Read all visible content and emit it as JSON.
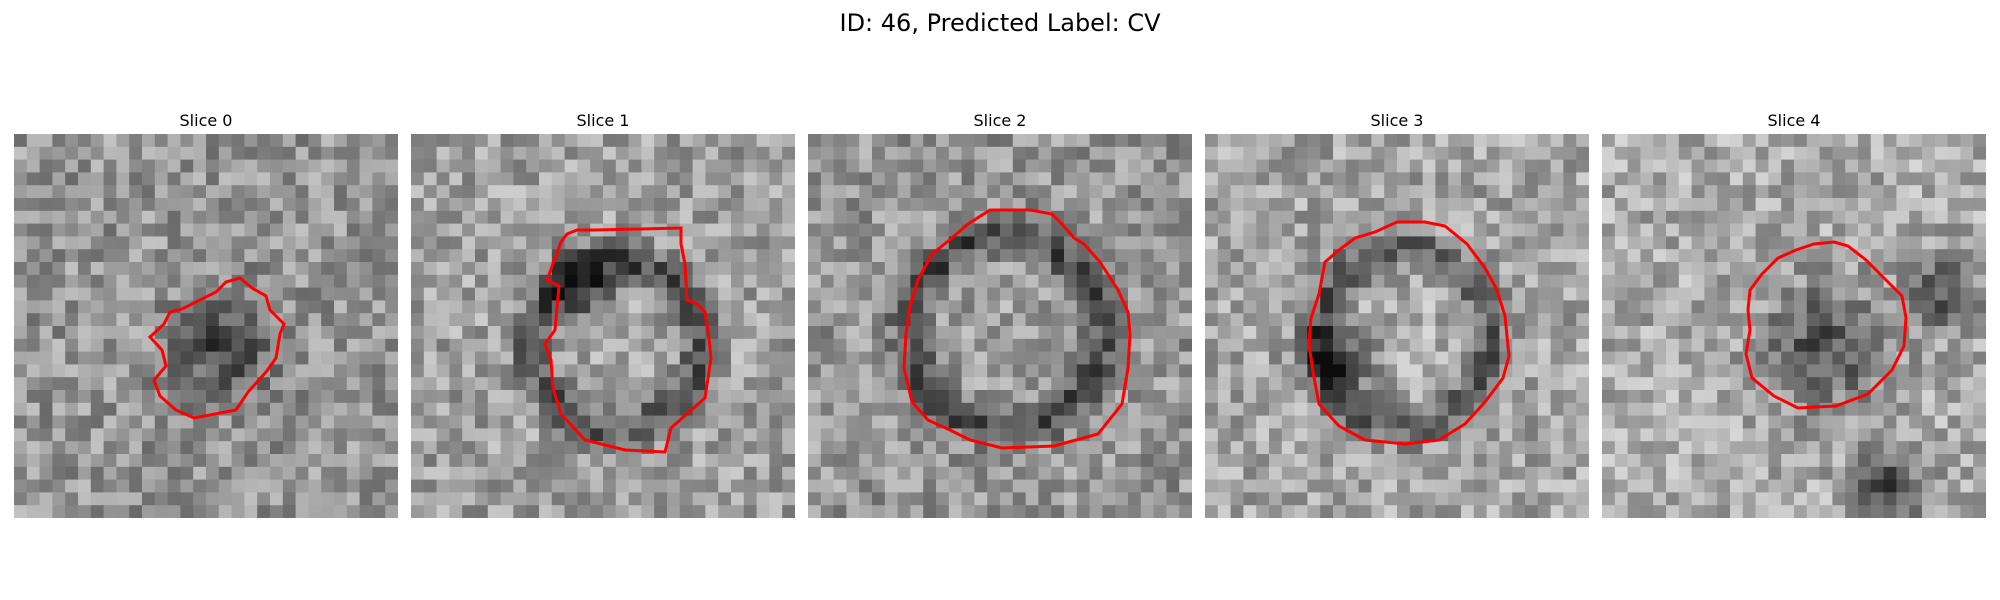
{
  "figure": {
    "title": "ID: 46, Predicted Label: CV",
    "contour_color": "#ff0000"
  },
  "panels": [
    {
      "title": "Slice 0"
    },
    {
      "title": "Slice 1"
    },
    {
      "title": "Slice 2"
    },
    {
      "title": "Slice 3"
    },
    {
      "title": "Slice 4"
    }
  ]
}
